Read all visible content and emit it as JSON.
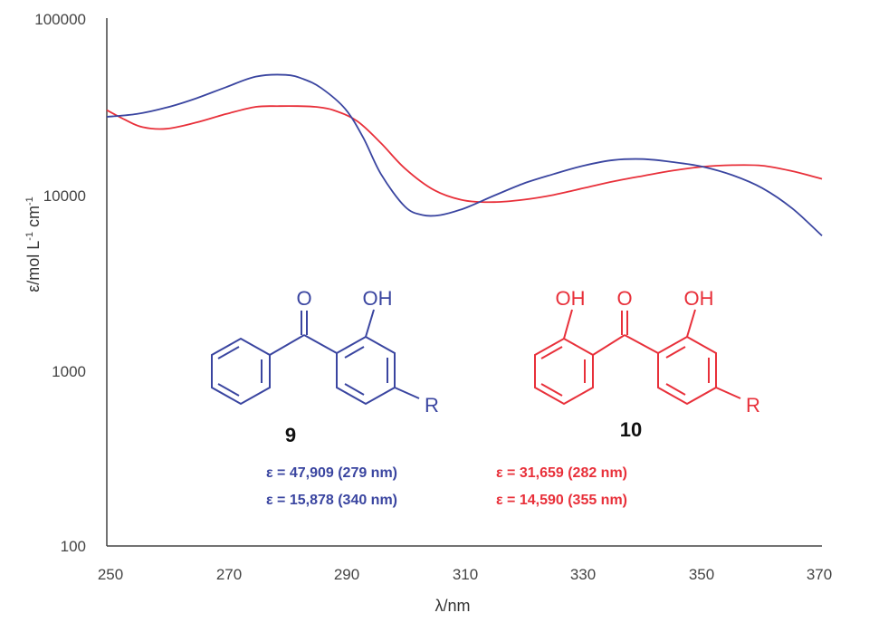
{
  "chart_data": {
    "type": "line",
    "xlabel": "λ/nm",
    "ylabel_main": "ε/mol L",
    "ylabel_sup1": "-1",
    "ylabel_mid": " cm",
    "ylabel_sup2": "-1",
    "yscale": "log",
    "xlim": [
      250,
      370
    ],
    "ylim": [
      100,
      100000
    ],
    "x_ticks": [
      "250",
      "270",
      "290",
      "310",
      "330",
      "350",
      "370"
    ],
    "y_ticks": [
      "100",
      "1000",
      "10000",
      "100000"
    ],
    "grid": false,
    "legend": "none",
    "series": [
      {
        "color": "#3a45a0",
        "x": [
          250,
          255,
          260,
          265,
          270,
          275,
          280,
          283,
          286,
          290,
          293,
          296,
          300,
          303,
          306,
          310,
          315,
          320,
          325,
          330,
          335,
          340,
          345,
          350,
          355,
          360,
          365,
          370
        ],
        "y": [
          27500,
          28500,
          31000,
          35000,
          40500,
          46500,
          47600,
          45000,
          40000,
          30500,
          21000,
          13000,
          8500,
          7600,
          7600,
          8300,
          9800,
          11500,
          13000,
          14500,
          15600,
          15800,
          15200,
          14300,
          12800,
          10800,
          8300,
          5800
        ]
      },
      {
        "color": "#e8303a",
        "x": [
          250,
          253,
          256,
          260,
          265,
          270,
          275,
          279,
          282,
          285,
          288,
          292,
          296,
          300,
          305,
          310,
          315,
          320,
          325,
          330,
          335,
          340,
          345,
          350,
          355,
          360,
          365,
          370
        ],
        "y": [
          30000,
          26500,
          24000,
          23500,
          25500,
          28500,
          31300,
          31600,
          31600,
          31300,
          30000,
          26000,
          19500,
          14000,
          10500,
          9200,
          9000,
          9300,
          9900,
          10800,
          11800,
          12700,
          13600,
          14300,
          14600,
          14500,
          13500,
          12200
        ]
      }
    ]
  },
  "annotations": {
    "mol9": {
      "carbonyl_o": "O",
      "oh": "OH",
      "r": "R",
      "number": "9",
      "eps1": "ε = 47,909 (279 nm)",
      "eps2": "ε = 15,878 (340 nm)"
    },
    "mol10": {
      "carbonyl_o": "O",
      "oh_left": "OH",
      "oh_right": "OH",
      "r": "R",
      "number": "10",
      "eps1": "ε = 31,659 (282 nm)",
      "eps2": "ε = 14,590 (355 nm)"
    }
  },
  "colors": {
    "blue": "#3a45a0",
    "red": "#e8303a",
    "axis": "#444444"
  }
}
